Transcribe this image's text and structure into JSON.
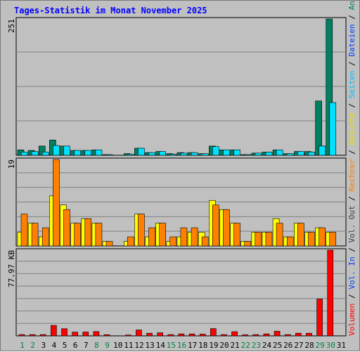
{
  "title": "Tages-Statistik im Monat November 2025",
  "colors": {
    "anfragen": "#008060",
    "dateien": "#00c0ff",
    "seiten": "#00e0ff",
    "besuche": "#ffff00",
    "rechner": "#ff8000",
    "volumen": "#ff0000",
    "weekend_day": "#008040",
    "weekday": "#000000",
    "panel_bg": "#c0c0c0",
    "grid": "#808080"
  },
  "chart_data": [
    {
      "type": "bar",
      "name": "top-panel",
      "ymax_label": "251",
      "ylim": [
        0,
        251
      ],
      "right_legend": [
        {
          "text": "Anfragen",
          "color": "#008060"
        },
        {
          "text": "Dateien",
          "color": "#0040ff"
        },
        {
          "text": "Seiten",
          "color": "#00c0ff"
        },
        {
          "text": "Besuche",
          "color": "#e0e000"
        },
        {
          "text": "Rechner",
          "color": "#ff8000"
        },
        {
          "text": "Vol. Out",
          "color": "#404040"
        },
        {
          "text": "Vol. In",
          "color": "#0040ff"
        },
        {
          "text": "Volumen",
          "color": "#ff0000"
        }
      ],
      "series": [
        {
          "values": [
            10,
            9,
            17,
            28,
            17,
            9,
            9,
            10,
            1,
            0,
            3,
            13,
            5,
            7,
            3,
            5,
            5,
            3,
            17,
            10,
            10,
            1,
            4,
            6,
            10,
            3,
            7,
            7,
            100,
            251
          ]
        },
        {
          "values": [
            6,
            7,
            6,
            18,
            17,
            9,
            9,
            10,
            1,
            0,
            2,
            13,
            5,
            7,
            2,
            4,
            5,
            3,
            16,
            10,
            10,
            1,
            4,
            6,
            10,
            3,
            7,
            6,
            17,
            97
          ]
        }
      ]
    },
    {
      "type": "bar",
      "name": "middle-panel",
      "ymax_label": "19",
      "ylim": [
        0,
        19
      ],
      "series": [
        {
          "values": [
            3,
            5,
            2,
            11,
            9,
            5,
            6,
            5,
            1,
            0,
            1,
            7,
            2,
            5,
            1,
            2,
            3,
            3,
            10,
            8,
            5,
            1,
            3,
            3,
            6,
            2,
            5,
            3,
            4,
            3
          ]
        },
        {
          "values": [
            7,
            5,
            4,
            19,
            8,
            5,
            6,
            5,
            1,
            0,
            2,
            7,
            4,
            5,
            2,
            4,
            4,
            2,
            9,
            8,
            5,
            1,
            3,
            3,
            5,
            2,
            5,
            3,
            4,
            3
          ]
        }
      ]
    },
    {
      "type": "bar",
      "name": "bottom-panel",
      "ymax_label": "77.97 KB",
      "ylim": [
        0,
        77.97
      ],
      "series": [
        {
          "values": [
            1.2,
            1.2,
            1.2,
            9.5,
            6.5,
            3.4,
            3.5,
            3.9,
            1.1,
            0,
            0.8,
            5.4,
            2.4,
            2.8,
            1.2,
            1.8,
            1.8,
            1.6,
            6.6,
            1.2,
            3.8,
            1.0,
            1.2,
            1.8,
            4.2,
            1.2,
            2.4,
            2.4,
            33.5,
            77.97
          ]
        }
      ]
    }
  ],
  "x_axis": {
    "labels": [
      "1",
      "2",
      "3",
      "4",
      "5",
      "6",
      "7",
      "8",
      "9",
      "10",
      "11",
      "12",
      "13",
      "14",
      "15",
      "16",
      "17",
      "18",
      "19",
      "20",
      "21",
      "22",
      "23",
      "24",
      "25",
      "26",
      "27",
      "28",
      "29",
      "30",
      "31"
    ],
    "weekend": [
      1,
      8,
      15,
      22,
      29,
      2,
      9,
      16,
      23,
      30
    ]
  }
}
